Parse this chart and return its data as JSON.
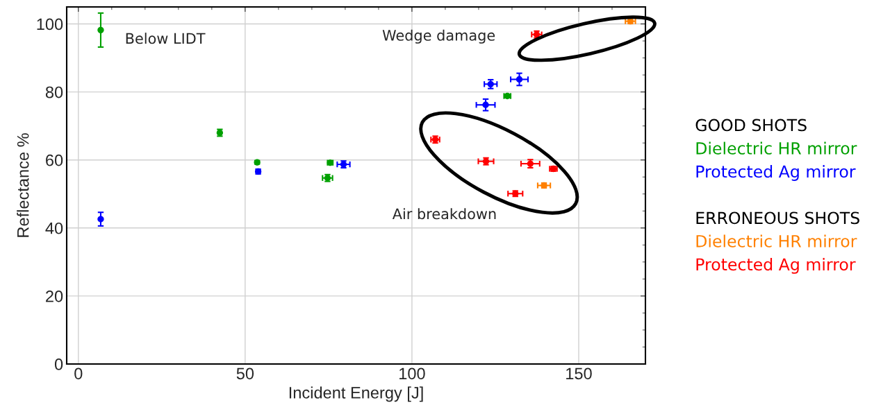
{
  "chart_data": {
    "type": "scatter",
    "xlabel": "Incident Energy [J]",
    "ylabel": "Reflectance %",
    "xlim": [
      -3.5,
      170
    ],
    "ylim": [
      0,
      105
    ],
    "xticks": [
      0,
      50,
      100,
      150
    ],
    "yticks": [
      0,
      20,
      40,
      60,
      80,
      100
    ],
    "grid": true,
    "marker": "circle",
    "legend": "right",
    "series": [
      {
        "name": "Dielectric HR mirror",
        "color": "#00a000",
        "x": [
          6.7,
          42.4,
          53.6,
          75.5,
          74.7,
          128.6
        ],
        "values": [
          98.2,
          68.0,
          59.3,
          59.2,
          54.7,
          78.8
        ],
        "errors": [
          5,
          1,
          0.5,
          0.5,
          1,
          0.5
        ],
        "xerrors": [
          null,
          null,
          null,
          0.8,
          1.5,
          1
        ]
      },
      {
        "name": "Protected Ag mirror",
        "color": "#0000ff",
        "x": [
          6.7,
          53.9,
          79.5,
          123.6,
          132.2,
          122.1
        ],
        "values": [
          42.6,
          56.6,
          58.7,
          82.3,
          83.7,
          76.2
        ],
        "errors": [
          2,
          0.7,
          1,
          1.3,
          1.8,
          1.7
        ],
        "xerrors": [
          null,
          null,
          1.9,
          1.9,
          2.6,
          2.8
        ]
      },
      {
        "name": "Dielectric HR mirror",
        "color": "#ff8000",
        "x": [
          165.5,
          139.6
        ],
        "values": [
          100.8,
          52.5
        ],
        "errors": [
          0.7,
          0.7
        ],
        "xerrors": [
          1.5,
          1.9
        ]
      },
      {
        "name": "Protected Ag mirror",
        "color": "#ff0000",
        "x": [
          137.4,
          107.0,
          122.2,
          135.5,
          142.4,
          131.0
        ],
        "values": [
          96.9,
          66.0,
          59.6,
          58.9,
          57.4,
          50.1
        ],
        "errors": [
          1,
          1,
          1,
          1.2,
          0.7,
          0.8
        ],
        "xerrors": [
          1.5,
          1.3,
          2.3,
          2.8,
          1.1,
          2.2
        ]
      }
    ],
    "annotations": [
      {
        "text": "Below LIDT",
        "x": 6.7,
        "y": 98.2
      },
      "Wedge damage",
      "Air breakdown",
      "GOOD SHOTS",
      "ERRONEOUS SHOTS"
    ]
  }
}
